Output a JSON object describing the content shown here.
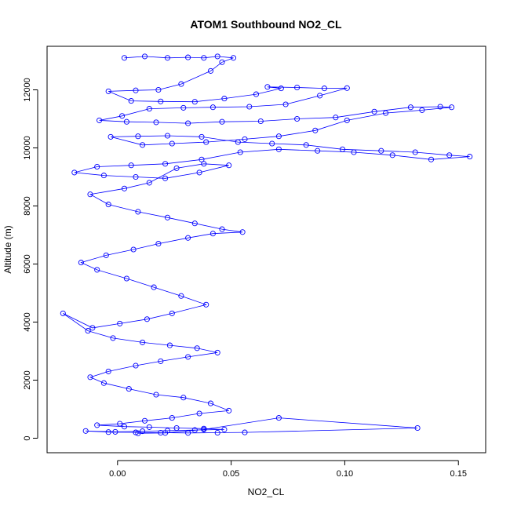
{
  "chart_data": {
    "type": "scatter",
    "title": "ATOM1 Southbound NO2_CL",
    "xlabel": "NO2_CL",
    "ylabel": "Altitude (m)",
    "xlim": [
      -0.031,
      0.162
    ],
    "ylim": [
      -500,
      13500
    ],
    "x_ticks": [
      0.0,
      0.05,
      0.1,
      0.15
    ],
    "x_tick_labels": [
      "0.00",
      "0.05",
      "0.10",
      "0.15"
    ],
    "y_ticks": [
      0,
      2000,
      4000,
      6000,
      8000,
      10000,
      12000
    ],
    "y_tick_labels": [
      "0",
      "2000",
      "4000",
      "6000",
      "8000",
      "10000",
      "12000"
    ],
    "grid": false,
    "legend": "none",
    "style": "points-connected-by-lines",
    "color": "#0000ff",
    "series": [
      {
        "x": [
          0.003,
          0.012,
          0.022,
          0.031,
          0.038,
          0.044,
          0.051,
          0.046,
          0.041,
          0.028,
          0.018,
          0.008,
          -0.004,
          0.006,
          0.019,
          0.034,
          0.047,
          0.061,
          0.072,
          0.066,
          0.079,
          0.091,
          0.101,
          0.089,
          0.074,
          0.058,
          0.042,
          0.029,
          0.014,
          0.002,
          -0.008,
          0.004,
          0.017,
          0.031,
          0.046,
          0.063,
          0.079,
          0.096,
          0.113,
          0.129,
          0.142,
          0.147,
          0.134,
          0.118,
          0.101,
          0.087,
          0.071,
          0.056,
          0.039,
          0.024,
          0.011,
          -0.003,
          0.009,
          0.022,
          0.037,
          0.053,
          0.068,
          0.083,
          0.099,
          0.116,
          0.131,
          0.146,
          0.155,
          0.138,
          0.121,
          0.104,
          0.088,
          0.071,
          0.054,
          0.037,
          0.021,
          0.006,
          -0.009,
          -0.019,
          -0.006,
          0.008,
          0.021,
          0.036,
          0.049,
          0.038,
          0.026,
          0.014,
          0.003,
          -0.012,
          -0.004,
          0.009,
          0.022,
          0.034,
          0.046,
          0.055,
          0.042,
          0.031,
          0.018,
          0.007,
          -0.005,
          -0.016,
          -0.009,
          0.004,
          0.016,
          0.028,
          0.039,
          0.024,
          0.013,
          0.001,
          -0.011,
          -0.024,
          -0.013,
          -0.002,
          0.011,
          0.023,
          0.035,
          0.044,
          0.031,
          0.019,
          0.008,
          -0.004,
          -0.012,
          -0.006,
          0.005,
          0.017,
          0.029,
          0.041,
          0.049,
          0.036,
          0.024,
          0.012,
          0.001,
          -0.009,
          0.003,
          0.014,
          0.026,
          0.038,
          0.047,
          0.034,
          0.022,
          0.011,
          -0.001,
          -0.014,
          -0.004,
          0.008,
          0.019,
          0.031,
          0.044,
          0.056,
          0.132,
          0.071,
          0.038,
          0.021,
          0.009
        ],
        "y": [
          13100,
          13150,
          13100,
          13120,
          13100,
          13150,
          13100,
          12950,
          12650,
          12200,
          12000,
          11980,
          11950,
          11620,
          11600,
          11590,
          11700,
          11850,
          12050,
          12100,
          12080,
          12050,
          12060,
          11800,
          11500,
          11420,
          11400,
          11380,
          11350,
          11100,
          10950,
          10900,
          10880,
          10850,
          10900,
          10920,
          11000,
          11050,
          11250,
          11400,
          11420,
          11400,
          11300,
          11200,
          10950,
          10600,
          10400,
          10300,
          10200,
          10150,
          10100,
          10380,
          10400,
          10420,
          10380,
          10200,
          10150,
          10100,
          9950,
          9900,
          9850,
          9750,
          9700,
          9600,
          9750,
          9850,
          9900,
          9950,
          9850,
          9600,
          9450,
          9400,
          9350,
          9150,
          9050,
          9000,
          8950,
          9150,
          9400,
          9450,
          9300,
          8800,
          8600,
          8400,
          8050,
          7800,
          7600,
          7400,
          7200,
          7100,
          7050,
          6900,
          6700,
          6500,
          6300,
          6050,
          5800,
          5500,
          5200,
          4900,
          4600,
          4300,
          4100,
          3950,
          3800,
          4300,
          3700,
          3450,
          3300,
          3200,
          3100,
          2950,
          2800,
          2650,
          2500,
          2300,
          2100,
          1900,
          1700,
          1500,
          1400,
          1200,
          950,
          850,
          700,
          600,
          500,
          450,
          400,
          380,
          350,
          330,
          300,
          280,
          260,
          240,
          220,
          250,
          210,
          200,
          190,
          180,
          190,
          200,
          350,
          700,
          300,
          180,
          170
        ]
      }
    ]
  }
}
